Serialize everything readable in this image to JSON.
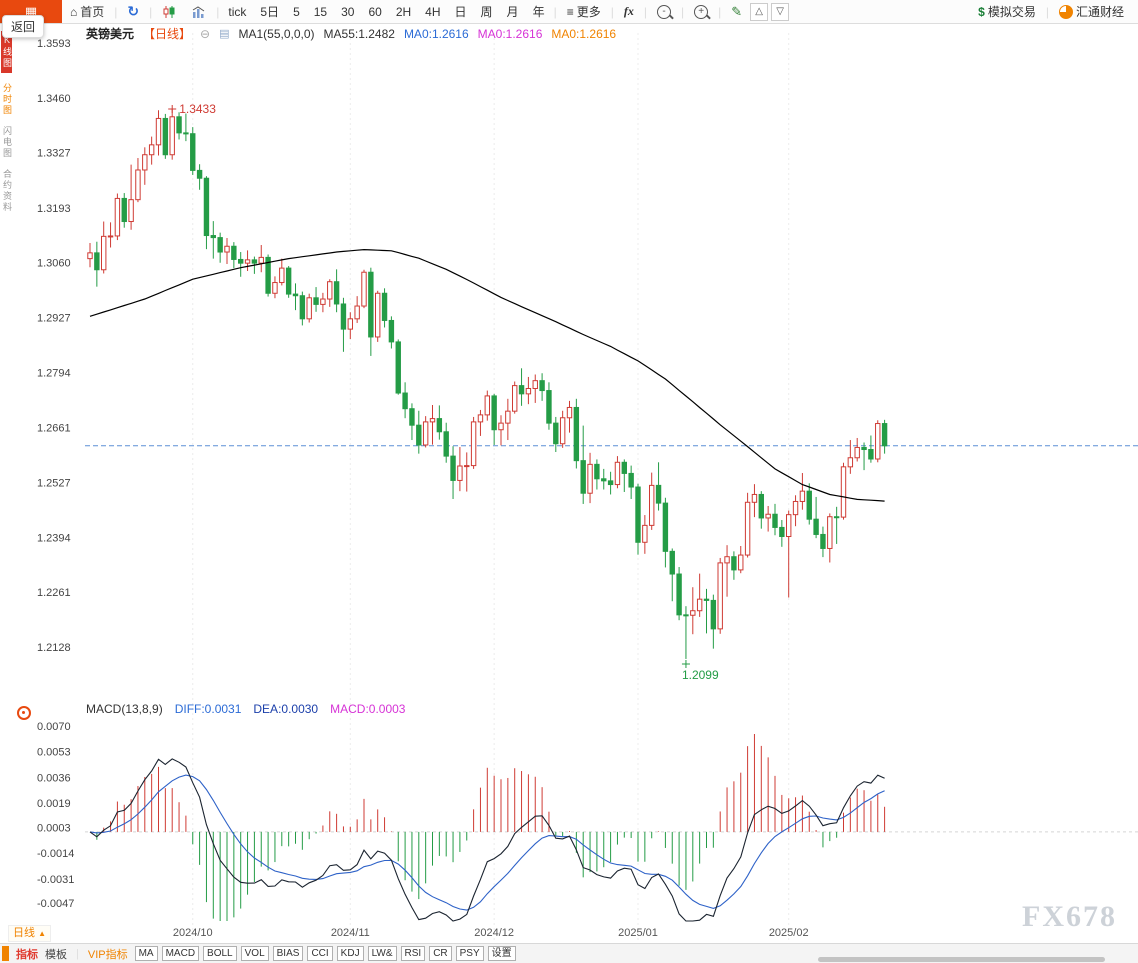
{
  "back_button_label": "返回",
  "watermark": "FX678",
  "icons": {
    "logo_glyph": "▦",
    "home": "⌂",
    "refresh": "↻",
    "more": "≡",
    "zoom_out_sign": "-",
    "zoom_in_sign": "+",
    "pencil": "✎",
    "tri_up": "△",
    "tri_down": "▽",
    "dollar": "$",
    "collapse": "⊖",
    "ma_settings": "▤",
    "selector_arrow": "▲"
  },
  "toolbar": {
    "home_label": "首页",
    "periods": [
      "tick",
      "5日",
      "5",
      "15",
      "30",
      "60",
      "2H",
      "4H",
      "日",
      "周",
      "月",
      "年"
    ],
    "more_label": "更多",
    "fx_label": "fx",
    "sim_trade_label": "模拟交易",
    "brand_label": "汇通财经"
  },
  "sidebar_items": [
    "K线图",
    "分时图",
    "闪电图",
    "合约资料"
  ],
  "chart_header": {
    "symbol": "英镑美元",
    "period": "【日线】",
    "ma_param": "MA1(55,0,0,0)",
    "ma55": "MA55:1.2482",
    "ma0_1": "MA0:1.2616",
    "ma0_2": "MA0:1.2616",
    "ma0_3": "MA0:1.2616"
  },
  "macd_header": {
    "title": "MACD(13,8,9)",
    "diff": "DIFF:0.0031",
    "dea": "DEA:0.0030",
    "macd": "MACD:0.0003"
  },
  "bottom_bar": {
    "period_selector": "日线",
    "tab_indicator": "指标",
    "tab_template": "模板",
    "vip_label": "VIP指标",
    "indicator_tabs": [
      "MA",
      "MACD",
      "BOLL",
      "VOL",
      "BIAS",
      "CCI",
      "KDJ",
      "LW&",
      "RSI",
      "CR",
      "PSY",
      "设置"
    ]
  },
  "chart_data": {
    "type": "candlestick",
    "symbol": "英镑美元",
    "interval": "日线",
    "y_axis_labels": [
      1.3593,
      1.346,
      1.3327,
      1.3193,
      1.306,
      1.2927,
      1.2794,
      1.2661,
      1.2527,
      1.2394,
      1.2261,
      1.2128
    ],
    "months": [
      {
        "label": "2024/10",
        "index": 15
      },
      {
        "label": "2024/11",
        "index": 38
      },
      {
        "label": "2024/12",
        "index": 59
      },
      {
        "label": "2025/01",
        "index": 80
      },
      {
        "label": "2025/02",
        "index": 102
      }
    ],
    "last_price_line": 1.2616,
    "high_annotation": {
      "index": 12,
      "price": 1.3433,
      "label": "1.3433"
    },
    "low_annotation": {
      "index": 87,
      "price": 1.2099,
      "label": "1.2099"
    },
    "ma55_waypoints": [
      [
        0,
        1.293
      ],
      [
        8,
        1.2972
      ],
      [
        15,
        1.302
      ],
      [
        22,
        1.3048
      ],
      [
        29,
        1.307
      ],
      [
        36,
        1.3086
      ],
      [
        40,
        1.3092
      ],
      [
        44,
        1.3089
      ],
      [
        48,
        1.3071
      ],
      [
        52,
        1.3044
      ],
      [
        56,
        1.3011
      ],
      [
        60,
        1.2976
      ],
      [
        64,
        1.2946
      ],
      [
        68,
        1.2917
      ],
      [
        72,
        1.2886
      ],
      [
        76,
        1.2857
      ],
      [
        80,
        1.2822
      ],
      [
        84,
        1.2778
      ],
      [
        88,
        1.2723
      ],
      [
        92,
        1.2667
      ],
      [
        96,
        1.2614
      ],
      [
        100,
        1.256
      ],
      [
        104,
        1.2522
      ],
      [
        108,
        1.2498
      ],
      [
        112,
        1.2486
      ],
      [
        116,
        1.2482
      ]
    ],
    "macd": {
      "display": "MACD(13,8,9)",
      "params_fast_slow_signal": [
        8,
        13,
        9
      ],
      "axis_labels": [
        0.007,
        0.0053,
        0.0036,
        0.0019,
        0.0003,
        -0.0014,
        -0.0031,
        -0.0047
      ],
      "diff_value": 0.0031,
      "dea_value": 0.003,
      "macd_value": 0.0003
    },
    "colors": {
      "up": "#cf3b34",
      "down": "#249c46",
      "ma55": "#000000",
      "diff_line": "#1b2430",
      "dea_line": "#2e62c8",
      "last_price": "#5b8fd6",
      "high_label": "#cf3b34",
      "low_label": "#249c46",
      "axis_text": "#444444"
    },
    "candles": [
      [
        1.307,
        1.3108,
        1.3049,
        1.3084
      ],
      [
        1.3084,
        1.3111,
        1.3002,
        1.3043
      ],
      [
        1.3043,
        1.316,
        1.3034,
        1.3124
      ],
      [
        1.3124,
        1.3158,
        1.3097,
        1.3125
      ],
      [
        1.3125,
        1.3228,
        1.3115,
        1.3216
      ],
      [
        1.3216,
        1.3229,
        1.3145,
        1.316
      ],
      [
        1.316,
        1.3298,
        1.314,
        1.3213
      ],
      [
        1.3213,
        1.3314,
        1.3207,
        1.3285
      ],
      [
        1.3285,
        1.334,
        1.3249,
        1.3322
      ],
      [
        1.3322,
        1.3366,
        1.3298,
        1.3346
      ],
      [
        1.3346,
        1.343,
        1.332,
        1.341
      ],
      [
        1.341,
        1.3421,
        1.3312,
        1.3322
      ],
      [
        1.3322,
        1.3433,
        1.331,
        1.3414
      ],
      [
        1.3414,
        1.3425,
        1.3359,
        1.3375
      ],
      [
        1.3375,
        1.3422,
        1.3355,
        1.3373
      ],
      [
        1.3373,
        1.3389,
        1.3273,
        1.3284
      ],
      [
        1.3284,
        1.3299,
        1.3237,
        1.3265
      ],
      [
        1.3265,
        1.327,
        1.3093,
        1.3126
      ],
      [
        1.3126,
        1.3161,
        1.307,
        1.3121
      ],
      [
        1.3121,
        1.3133,
        1.306,
        1.3086
      ],
      [
        1.3086,
        1.312,
        1.3057,
        1.31
      ],
      [
        1.31,
        1.311,
        1.3047,
        1.3068
      ],
      [
        1.3068,
        1.3086,
        1.3026,
        1.3059
      ],
      [
        1.3059,
        1.309,
        1.304,
        1.3067
      ],
      [
        1.3067,
        1.3075,
        1.3033,
        1.3059
      ],
      [
        1.3059,
        1.3103,
        1.3037,
        1.3073
      ],
      [
        1.3073,
        1.308,
        1.2978,
        1.2986
      ],
      [
        1.2986,
        1.3027,
        1.2974,
        1.3012
      ],
      [
        1.3012,
        1.307,
        1.3005,
        1.3047
      ],
      [
        1.3047,
        1.3052,
        1.2975,
        1.2984
      ],
      [
        1.2984,
        1.301,
        1.2945,
        1.298
      ],
      [
        1.298,
        1.299,
        1.2908,
        1.2924
      ],
      [
        1.2924,
        1.2985,
        1.2915,
        1.2975
      ],
      [
        1.2975,
        1.3001,
        1.2941,
        1.2959
      ],
      [
        1.2959,
        1.2987,
        1.294,
        1.2972
      ],
      [
        1.2972,
        1.302,
        1.2953,
        1.3014
      ],
      [
        1.3014,
        1.3044,
        1.294,
        1.296
      ],
      [
        1.296,
        1.2975,
        1.2844,
        1.2899
      ],
      [
        1.2899,
        1.294,
        1.2875,
        1.2924
      ],
      [
        1.2924,
        1.2979,
        1.2914,
        1.2955
      ],
      [
        1.2955,
        1.3043,
        1.295,
        1.3037
      ],
      [
        1.3037,
        1.3048,
        1.2834,
        1.288
      ],
      [
        1.288,
        1.2992,
        1.2868,
        1.2986
      ],
      [
        1.2986,
        1.2998,
        1.2903,
        1.292
      ],
      [
        1.292,
        1.293,
        1.2852,
        1.2868
      ],
      [
        1.2868,
        1.2874,
        1.274,
        1.2744
      ],
      [
        1.2744,
        1.277,
        1.2683,
        1.2706
      ],
      [
        1.2706,
        1.2719,
        1.263,
        1.2666
      ],
      [
        1.2666,
        1.2701,
        1.2597,
        1.2618
      ],
      [
        1.2618,
        1.2688,
        1.2612,
        1.2674
      ],
      [
        1.2674,
        1.2715,
        1.2619,
        1.2682
      ],
      [
        1.2682,
        1.2714,
        1.2631,
        1.265
      ],
      [
        1.265,
        1.2672,
        1.2575,
        1.2591
      ],
      [
        1.2591,
        1.2615,
        1.2487,
        1.2532
      ],
      [
        1.2532,
        1.2613,
        1.2506,
        1.2567
      ],
      [
        1.2567,
        1.26,
        1.2505,
        1.2568
      ],
      [
        1.2568,
        1.2686,
        1.256,
        1.2674
      ],
      [
        1.2674,
        1.2703,
        1.264,
        1.2691
      ],
      [
        1.2691,
        1.275,
        1.2677,
        1.2737
      ],
      [
        1.2737,
        1.2742,
        1.2618,
        1.2655
      ],
      [
        1.2655,
        1.269,
        1.2617,
        1.2671
      ],
      [
        1.2671,
        1.273,
        1.263,
        1.27
      ],
      [
        1.27,
        1.2772,
        1.2694,
        1.2762
      ],
      [
        1.2762,
        1.2804,
        1.2713,
        1.2742
      ],
      [
        1.2742,
        1.2783,
        1.2717,
        1.2755
      ],
      [
        1.2755,
        1.2789,
        1.272,
        1.2774
      ],
      [
        1.2774,
        1.2792,
        1.2725,
        1.275
      ],
      [
        1.275,
        1.277,
        1.2655,
        1.2671
      ],
      [
        1.2671,
        1.2686,
        1.2601,
        1.2621
      ],
      [
        1.2621,
        1.2701,
        1.2611,
        1.2684
      ],
      [
        1.2684,
        1.2725,
        1.2648,
        1.2709
      ],
      [
        1.2709,
        1.273,
        1.2561,
        1.258
      ],
      [
        1.258,
        1.2665,
        1.2475,
        1.2501
      ],
      [
        1.2501,
        1.2599,
        1.2477,
        1.2571
      ],
      [
        1.2571,
        1.2583,
        1.251,
        1.2536
      ],
      [
        1.2536,
        1.256,
        1.251,
        1.2531
      ],
      [
        1.2531,
        1.2553,
        1.2498,
        1.2522
      ],
      [
        1.2522,
        1.2591,
        1.2513,
        1.2576
      ],
      [
        1.2576,
        1.2583,
        1.2504,
        1.2549
      ],
      [
        1.2549,
        1.2568,
        1.2487,
        1.2516
      ],
      [
        1.2516,
        1.2524,
        1.2352,
        1.2382
      ],
      [
        1.2382,
        1.2448,
        1.2354,
        1.2423
      ],
      [
        1.2423,
        1.2551,
        1.2412,
        1.252
      ],
      [
        1.252,
        1.2576,
        1.2459,
        1.2477
      ],
      [
        1.2477,
        1.249,
        1.2321,
        1.236
      ],
      [
        1.236,
        1.2367,
        1.2239,
        1.2305
      ],
      [
        1.2305,
        1.2322,
        1.2193,
        1.2206
      ],
      [
        1.2206,
        1.2227,
        1.2099,
        1.2205
      ],
      [
        1.2205,
        1.2273,
        1.2159,
        1.2216
      ],
      [
        1.2216,
        1.2306,
        1.2201,
        1.2244
      ],
      [
        1.2244,
        1.2269,
        1.2161,
        1.2241
      ],
      [
        1.2241,
        1.2255,
        1.2124,
        1.2172
      ],
      [
        1.2172,
        1.2344,
        1.216,
        1.2332
      ],
      [
        1.2332,
        1.2375,
        1.225,
        1.2347
      ],
      [
        1.2347,
        1.236,
        1.2291,
        1.2315
      ],
      [
        1.2315,
        1.2373,
        1.2307,
        1.2351
      ],
      [
        1.2351,
        1.2502,
        1.2345,
        1.2479
      ],
      [
        1.2479,
        1.2523,
        1.2443,
        1.2498
      ],
      [
        1.2498,
        1.2506,
        1.2415,
        1.2441
      ],
      [
        1.2441,
        1.247,
        1.2408,
        1.245
      ],
      [
        1.245,
        1.2475,
        1.2399,
        1.2418
      ],
      [
        1.2418,
        1.2436,
        1.2371,
        1.2396
      ],
      [
        1.2396,
        1.2459,
        1.2248,
        1.2449
      ],
      [
        1.2449,
        1.2496,
        1.2421,
        1.2481
      ],
      [
        1.2481,
        1.255,
        1.2461,
        1.2506
      ],
      [
        1.2506,
        1.2525,
        1.2425,
        1.2438
      ],
      [
        1.2438,
        1.2492,
        1.2392,
        1.2401
      ],
      [
        1.2401,
        1.242,
        1.2346,
        1.2367
      ],
      [
        1.2367,
        1.2452,
        1.2333,
        1.2444
      ],
      [
        1.2444,
        1.2468,
        1.2378,
        1.2443
      ],
      [
        1.2443,
        1.2575,
        1.2437,
        1.2565
      ],
      [
        1.2565,
        1.263,
        1.2548,
        1.2587
      ],
      [
        1.2587,
        1.2635,
        1.2578,
        1.2612
      ],
      [
        1.2612,
        1.2624,
        1.2557,
        1.2607
      ],
      [
        1.2607,
        1.2641,
        1.2575,
        1.2584
      ],
      [
        1.2584,
        1.2678,
        1.2576,
        1.267
      ],
      [
        1.267,
        1.2679,
        1.2597,
        1.2616
      ]
    ]
  }
}
